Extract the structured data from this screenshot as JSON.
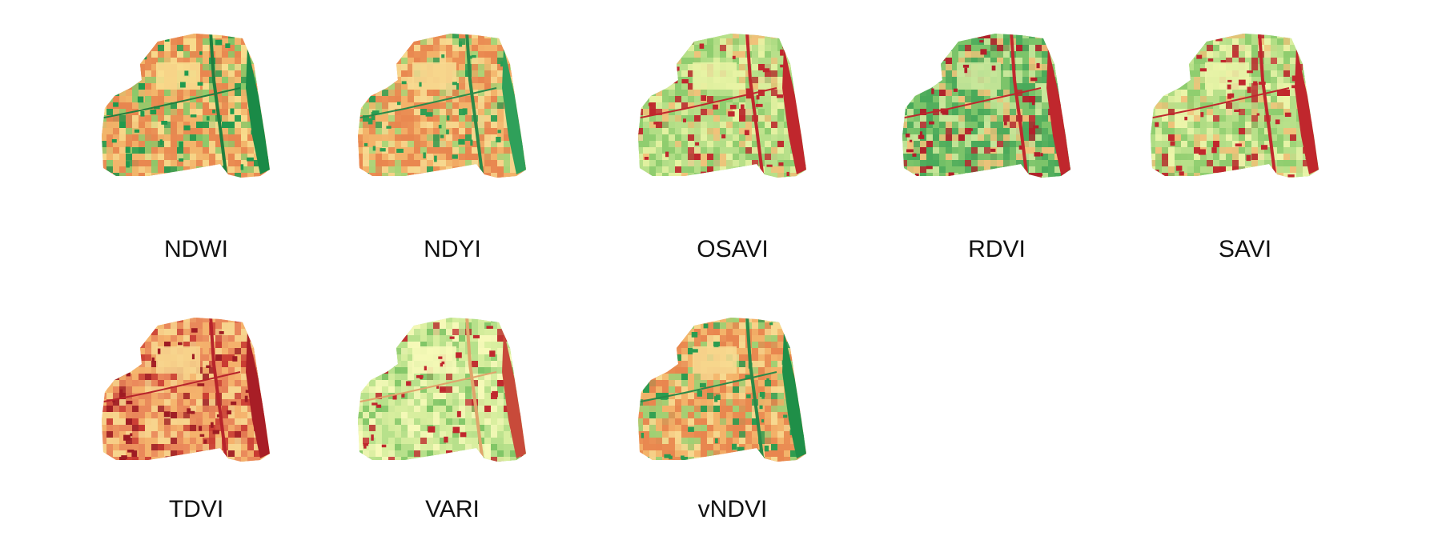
{
  "panels": [
    {
      "label": "NDWI",
      "palette": [
        "#e8864f",
        "#f2b56b",
        "#f8dd8e",
        "#8cc96a",
        "#1f9a4e"
      ],
      "edge": "#1a8a47",
      "road": "#1f7f3f"
    },
    {
      "label": "NDYI",
      "palette": [
        "#e8864f",
        "#f3b36a",
        "#f7d990",
        "#a8d477",
        "#2b9e52"
      ],
      "edge": "#2fa05a",
      "road": "#2a8a49"
    },
    {
      "label": "OSAVI",
      "palette": [
        "#b8e08a",
        "#8fcd6f",
        "#e8f3a4",
        "#f1c27a",
        "#c0272d"
      ],
      "edge": "#c0272d",
      "road": "#c0272d"
    },
    {
      "label": "RDVI",
      "palette": [
        "#49a95a",
        "#7cc46a",
        "#c8e79a",
        "#f1c27a",
        "#b21f2a"
      ],
      "edge": "#c0272d",
      "road": "#c0272d"
    },
    {
      "label": "SAVI",
      "palette": [
        "#b8e08a",
        "#8fcd6f",
        "#ecf5aa",
        "#f1c27a",
        "#c0272d"
      ],
      "edge": "#c0272d",
      "road": "#c0272d"
    },
    {
      "label": "TDVI",
      "palette": [
        "#e9875a",
        "#f4b26c",
        "#f7d58e",
        "#c93a32",
        "#9e1b23"
      ],
      "edge": "#a81e26",
      "road": "#b7242b"
    },
    {
      "label": "VARI",
      "palette": [
        "#d8ee9f",
        "#b7e08b",
        "#f6f9b8",
        "#7fc566",
        "#c0272d"
      ],
      "edge": "#c84a3a",
      "road": "#e0a46b"
    },
    {
      "label": "vNDVI",
      "palette": [
        "#e8864f",
        "#f3b36a",
        "#f7d990",
        "#9fd074",
        "#2a9c50"
      ],
      "edge": "#1f8f48",
      "road": "#2a8a49"
    }
  ]
}
